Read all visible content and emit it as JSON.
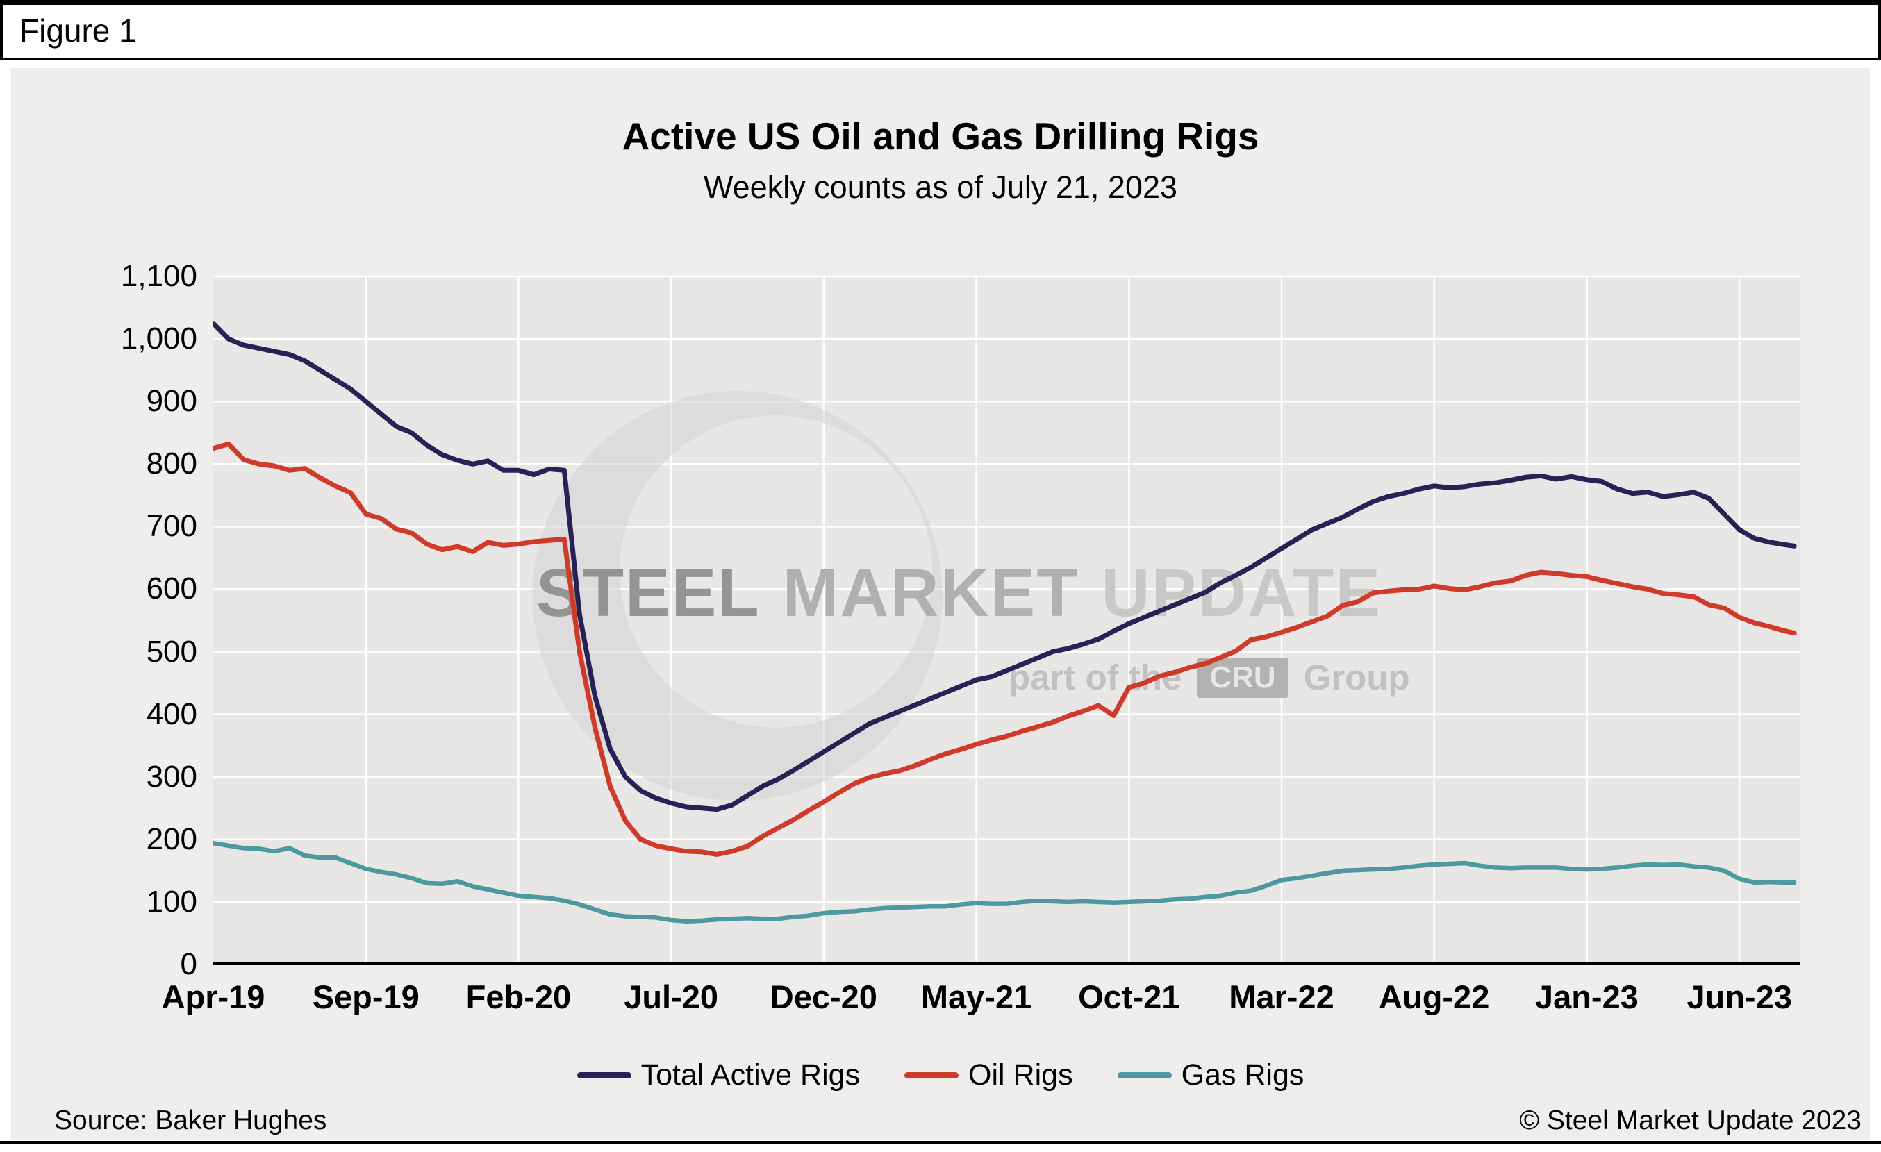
{
  "figure_label": "Figure 1",
  "title": "Active US Oil and Gas Drilling Rigs",
  "subtitle": "Weekly counts as of July 21, 2023",
  "source": "Source: Baker Hughes",
  "copyright": "© Steel Market Update 2023",
  "watermark": {
    "words": [
      "STEEL",
      "MARKET",
      "UPDATE"
    ],
    "tagline_prefix": "part of the",
    "tagline_box": "CRU",
    "tagline_suffix": "Group"
  },
  "colors": {
    "total": "#262255",
    "oil": "#cf3a2a",
    "gas": "#4e98a0",
    "plot_bg": "#e9e6e6",
    "chart_bg": "#f0eded",
    "grid": "#ffffff",
    "axis": "#000000"
  },
  "chart_data": {
    "type": "line",
    "title": "Active US Oil and Gas Drilling Rigs",
    "subtitle": "Weekly counts as of July 21, 2023",
    "xlabel": "",
    "ylabel": "",
    "x_unit": "months since Apr-2019 (weekly counts, Apr-19 through Jul 21, 2023)",
    "xlim": [
      0,
      52
    ],
    "ylim": [
      0,
      1100
    ],
    "grid": true,
    "legend_position": "bottom",
    "y_tick_values": [
      0,
      100,
      200,
      300,
      400,
      500,
      600,
      700,
      800,
      900,
      1000,
      1100
    ],
    "y_tick_labels": [
      "0",
      "100",
      "200",
      "300",
      "400",
      "500",
      "600",
      "700",
      "800",
      "900",
      "1,000",
      "1,100"
    ],
    "x_tick_pos": [
      0,
      5,
      10,
      15,
      20,
      25,
      30,
      35,
      40,
      45,
      50
    ],
    "x_tick_labels": [
      "Apr-19",
      "Sep-19",
      "Feb-20",
      "Jul-20",
      "Dec-20",
      "May-21",
      "Oct-21",
      "Mar-22",
      "Aug-22",
      "Jan-23",
      "Jun-23"
    ],
    "x": [
      0,
      0.5,
      1,
      1.5,
      2,
      2.5,
      3,
      3.5,
      4,
      4.5,
      5,
      5.5,
      6,
      6.5,
      7,
      7.5,
      8,
      8.5,
      9,
      9.5,
      10,
      10.5,
      11,
      11.5,
      12,
      12.5,
      13,
      13.5,
      14,
      14.5,
      15,
      15.5,
      16,
      16.5,
      17,
      17.5,
      18,
      18.5,
      19,
      19.5,
      20,
      20.5,
      21,
      21.5,
      22,
      22.5,
      23,
      23.5,
      24,
      24.5,
      25,
      25.5,
      26,
      26.5,
      27,
      27.5,
      28,
      28.5,
      29,
      29.5,
      30,
      30.5,
      31,
      31.5,
      32,
      32.5,
      33,
      33.5,
      34,
      34.5,
      35,
      35.5,
      36,
      36.5,
      37,
      37.5,
      38,
      38.5,
      39,
      39.5,
      40,
      40.5,
      41,
      41.5,
      42,
      42.5,
      43,
      43.5,
      44,
      44.5,
      45,
      45.5,
      46,
      46.5,
      47,
      47.5,
      48,
      48.5,
      49,
      49.5,
      50,
      50.5,
      51,
      51.5,
      51.8
    ],
    "series": [
      {
        "name": "Total Active Rigs",
        "color": "#262255",
        "stroke_width": 7,
        "values": [
          1025,
          1000,
          990,
          985,
          980,
          975,
          965,
          950,
          935,
          920,
          900,
          880,
          860,
          850,
          830,
          815,
          806,
          800,
          805,
          790,
          790,
          783,
          792,
          790,
          560,
          430,
          345,
          300,
          278,
          266,
          258,
          252,
          250,
          248,
          255,
          270,
          285,
          296,
          310,
          325,
          340,
          355,
          370,
          385,
          395,
          405,
          415,
          425,
          435,
          445,
          455,
          460,
          470,
          480,
          490,
          500,
          505,
          512,
          520,
          533,
          545,
          555,
          565,
          575,
          585,
          595,
          610,
          622,
          635,
          650,
          665,
          680,
          695,
          705,
          715,
          728,
          740,
          748,
          753,
          760,
          765,
          762,
          764,
          768,
          770,
          774,
          779,
          781,
          776,
          780,
          775,
          772,
          760,
          753,
          755,
          748,
          751,
          755,
          745,
          720,
          695,
          681,
          675,
          671,
          669
        ]
      },
      {
        "name": "Oil Rigs",
        "color": "#cf3a2a",
        "stroke_width": 7,
        "values": [
          825,
          832,
          807,
          800,
          797,
          790,
          793,
          778,
          765,
          754,
          720,
          713,
          696,
          690,
          672,
          663,
          668,
          660,
          675,
          670,
          672,
          676,
          678,
          680,
          500,
          380,
          285,
          230,
          200,
          190,
          185,
          181,
          180,
          176,
          181,
          189,
          205,
          218,
          231,
          246,
          260,
          275,
          289,
          299,
          305,
          310,
          318,
          328,
          337,
          344,
          352,
          359,
          365,
          373,
          380,
          387,
          397,
          405,
          414,
          398,
          443,
          450,
          461,
          467,
          475,
          481,
          491,
          501,
          519,
          524,
          531,
          539,
          548,
          557,
          574,
          580,
          594,
          597,
          599,
          600,
          605,
          601,
          599,
          604,
          610,
          613,
          622,
          627,
          625,
          622,
          620,
          614,
          609,
          604,
          600,
          593,
          591,
          588,
          575,
          570,
          555,
          546,
          540,
          533,
          530
        ]
      },
      {
        "name": "Gas Rigs",
        "color": "#4e98a0",
        "stroke_width": 6.5,
        "values": [
          194,
          190,
          186,
          185,
          181,
          186,
          174,
          171,
          171,
          162,
          153,
          148,
          144,
          138,
          130,
          129,
          133,
          125,
          120,
          115,
          110,
          108,
          106,
          102,
          96,
          88,
          80,
          77,
          76,
          75,
          71,
          69,
          70,
          72,
          73,
          74,
          73,
          73,
          76,
          78,
          82,
          84,
          85,
          88,
          90,
          91,
          92,
          93,
          93,
          96,
          98,
          97,
          97,
          100,
          102,
          101,
          100,
          101,
          100,
          99,
          100,
          101,
          102,
          104,
          105,
          108,
          110,
          115,
          118,
          126,
          135,
          138,
          142,
          146,
          150,
          151,
          152,
          153,
          155,
          158,
          160,
          161,
          162,
          158,
          155,
          154,
          155,
          155,
          155,
          153,
          152,
          153,
          155,
          158,
          160,
          159,
          160,
          157,
          155,
          150,
          137,
          131,
          132,
          131,
          131
        ]
      }
    ]
  }
}
